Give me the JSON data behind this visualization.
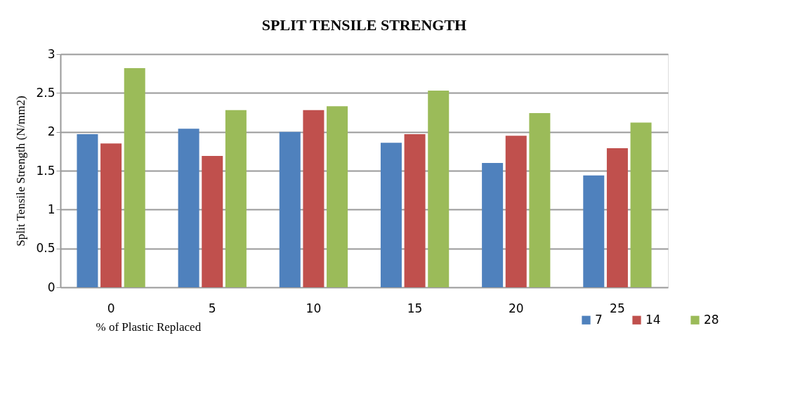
{
  "chart_data": {
    "type": "bar",
    "title": "SPLIT TENSILE STRENGTH",
    "xlabel": "% of Plastic Replaced",
    "ylabel": "Split Tensile Strength (N/mm2)",
    "categories": [
      "0",
      "5",
      "10",
      "15",
      "20",
      "25"
    ],
    "series": [
      {
        "name": "7",
        "color": "#4f81bd",
        "values": [
          1.97,
          2.04,
          2.0,
          1.86,
          1.6,
          1.44
        ]
      },
      {
        "name": "14",
        "color": "#c0504d",
        "values": [
          1.85,
          1.69,
          2.28,
          1.97,
          1.95,
          1.79
        ]
      },
      {
        "name": "28",
        "color": "#9bbb59",
        "values": [
          2.82,
          2.28,
          2.33,
          2.53,
          2.24,
          2.12
        ]
      }
    ],
    "ylim": [
      0,
      3
    ],
    "yticks": [
      0,
      0.5,
      1,
      1.5,
      2,
      2.5,
      3
    ],
    "grid": "y",
    "legend": "bottom right"
  }
}
